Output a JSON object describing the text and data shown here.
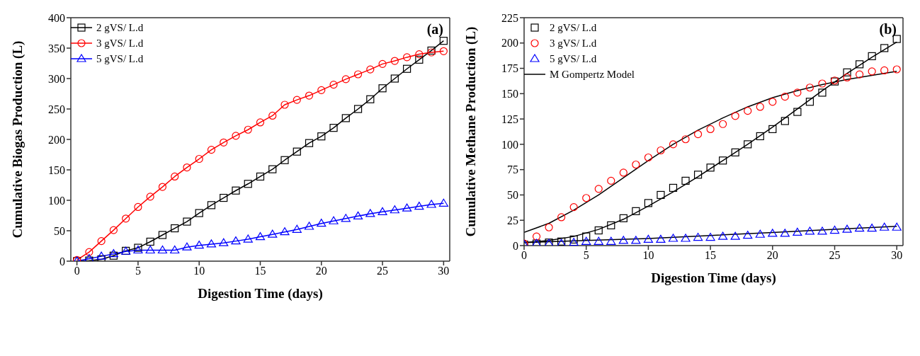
{
  "chart_data": [
    {
      "type": "line",
      "xlabel": "Digestion Time (days)",
      "ylabel": "Cumulative Biogas Production (L)",
      "annotations": [
        "(a)"
      ],
      "legend": "top left",
      "x": [
        0,
        1,
        2,
        3,
        4,
        5,
        6,
        7,
        8,
        9,
        10,
        11,
        12,
        13,
        14,
        15,
        16,
        17,
        18,
        19,
        20,
        21,
        22,
        23,
        24,
        25,
        26,
        27,
        28,
        29,
        30
      ],
      "xlim": [
        -0.5,
        30.5
      ],
      "xticks": [
        0,
        5,
        10,
        15,
        20,
        25,
        30
      ],
      "ylim": [
        0,
        400
      ],
      "yticks": [
        0,
        50,
        100,
        150,
        200,
        250,
        300,
        350,
        400
      ],
      "series": [
        {
          "name": "2 gVS/ L.d",
          "color": "#000000",
          "marker": "square",
          "values": [
            0,
            1,
            3,
            9,
            17,
            22,
            32,
            43,
            54,
            65,
            79,
            92,
            104,
            116,
            127,
            139,
            151,
            166,
            180,
            194,
            205,
            219,
            235,
            250,
            266,
            284,
            300,
            316,
            331,
            346,
            362
          ]
        },
        {
          "name": "3 gVS/ L.d",
          "color": "#ff0000",
          "marker": "circle",
          "values": [
            2,
            15,
            33,
            51,
            70,
            89,
            106,
            122,
            139,
            154,
            168,
            183,
            195,
            206,
            216,
            228,
            239,
            257,
            265,
            272,
            281,
            290,
            299,
            307,
            315,
            324,
            329,
            335,
            340,
            343,
            345
          ]
        },
        {
          "name": "5 gVS/ L.d",
          "color": "#0000ff",
          "marker": "triangle",
          "values": [
            0,
            4,
            8,
            12,
            16,
            18,
            18,
            18,
            18,
            23,
            26,
            28,
            30,
            33,
            36,
            40,
            44,
            48,
            52,
            57,
            62,
            66,
            70,
            74,
            78,
            81,
            84,
            87,
            90,
            93,
            95
          ]
        }
      ]
    },
    {
      "type": "scatter",
      "xlabel": "Digestion Time (days)",
      "ylabel": "Cumulative Methane Production (L)",
      "annotations": [
        "(b)"
      ],
      "legend": "top left",
      "x": [
        0,
        1,
        2,
        3,
        4,
        5,
        6,
        7,
        8,
        9,
        10,
        11,
        12,
        13,
        14,
        15,
        16,
        17,
        18,
        19,
        20,
        21,
        22,
        23,
        24,
        25,
        26,
        27,
        28,
        29,
        30
      ],
      "xlim": [
        0,
        30.5
      ],
      "xticks": [
        0,
        5,
        10,
        15,
        20,
        25,
        30
      ],
      "ylim": [
        0,
        225
      ],
      "yticks": [
        0,
        25,
        50,
        75,
        100,
        125,
        150,
        175,
        200,
        225
      ],
      "series": [
        {
          "name": "2 gVS/ L.d",
          "color": "#000000",
          "marker": "square",
          "values": [
            1,
            2,
            3,
            4,
            6,
            9,
            15,
            20,
            27,
            34,
            42,
            50,
            57,
            64,
            70,
            77,
            84,
            92,
            100,
            108,
            115,
            123,
            132,
            142,
            151,
            162,
            171,
            179,
            187,
            195,
            204
          ]
        },
        {
          "name": "3 gVS/ L.d",
          "color": "#ff0000",
          "marker": "circle",
          "values": [
            2,
            9,
            18,
            28,
            38,
            47,
            56,
            64,
            72,
            80,
            87,
            94,
            100,
            105,
            110,
            115,
            120,
            128,
            133,
            137,
            142,
            147,
            151,
            156,
            160,
            163,
            166,
            169,
            172,
            173,
            174
          ]
        },
        {
          "name": "5 gVS/ L.d",
          "color": "#0000ff",
          "marker": "triangle",
          "values": [
            1,
            2,
            2,
            2,
            3,
            4,
            4,
            4,
            5,
            5,
            6,
            6,
            7,
            7,
            8,
            8,
            9,
            9,
            10,
            11,
            12,
            12,
            13,
            14,
            14,
            15,
            16,
            17,
            17,
            18,
            18
          ]
        },
        {
          "name": "M Gompertz Model",
          "type": "line",
          "color": "#000000",
          "marker": "none",
          "x": [
            0,
            2,
            4,
            6,
            8,
            10,
            12,
            14,
            16,
            18,
            20,
            22,
            24,
            26,
            28,
            30
          ],
          "values": [
            3,
            5,
            9,
            16,
            26,
            39,
            53,
            68,
            84,
            100,
            117,
            135,
            153,
            170,
            186,
            201
          ]
        },
        {
          "type": "line",
          "color": "#000000",
          "marker": "none",
          "x": [
            0,
            2,
            4,
            6,
            8,
            10,
            12,
            14,
            16,
            18,
            20,
            22,
            24,
            26,
            28,
            30
          ],
          "values": [
            13,
            22,
            35,
            50,
            67,
            84,
            100,
            114,
            126,
            137,
            146,
            153,
            159,
            164,
            168,
            172
          ]
        },
        {
          "type": "line",
          "color": "#000000",
          "marker": "none",
          "x": [
            0,
            5,
            10,
            15,
            20,
            25,
            30
          ],
          "values": [
            3,
            5,
            7,
            10,
            13,
            16,
            19
          ]
        }
      ]
    }
  ]
}
